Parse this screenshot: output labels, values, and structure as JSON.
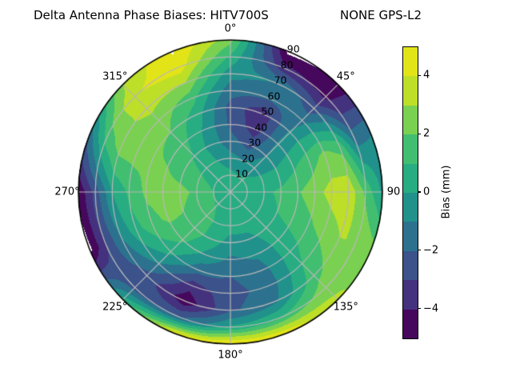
{
  "header": {
    "title_left": "Delta Antenna Phase Biases: HITV700S",
    "title_right": "NONE GPS-L2"
  },
  "chart_data": {
    "type": "polar_contour",
    "title": "Delta Antenna Phase Biases: HITV700S     NONE GPS-L2",
    "units": "mm",
    "azimuth_deg": [
      0,
      22.5,
      45,
      67.5,
      90,
      112.5,
      135,
      157.5,
      180,
      202.5,
      225,
      247.5,
      270,
      292.5,
      315,
      337.5
    ],
    "zenith_deg": [
      0,
      10,
      20,
      30,
      40,
      50,
      60,
      70,
      80,
      90
    ],
    "bias_mm": [
      [
        0.5,
        0.5,
        0.5,
        0.5,
        0.5,
        0.5,
        0.5,
        0.5,
        0.5,
        0.5,
        0.5,
        0.5,
        0.5,
        0.5,
        0.5,
        0.5
      ],
      [
        0.3,
        0.1,
        0.2,
        0.3,
        0.5,
        0.5,
        0.4,
        0.5,
        0.5,
        0.7,
        0.9,
        1.0,
        1.0,
        0.8,
        0.6,
        0.4
      ],
      [
        -0.6,
        -1.0,
        -0.5,
        0.2,
        0.8,
        0.6,
        0.4,
        0.3,
        0.4,
        0.8,
        1.4,
        1.6,
        1.8,
        1.2,
        0.7,
        0.0
      ],
      [
        -1.6,
        -2.4,
        -1.0,
        0.3,
        1.2,
        1.0,
        0.4,
        -0.2,
        -0.4,
        0.6,
        1.6,
        2.0,
        2.3,
        1.6,
        0.9,
        -0.4
      ],
      [
        -2.2,
        -3.6,
        -0.8,
        0.8,
        1.9,
        1.4,
        0.4,
        -0.8,
        -1.2,
        -0.2,
        1.2,
        2.2,
        2.4,
        2.0,
        1.4,
        -0.2
      ],
      [
        -2.4,
        -3.8,
        -0.8,
        1.5,
        2.6,
        1.8,
        0.6,
        -1.4,
        -2.0,
        -1.6,
        0.3,
        1.6,
        2.2,
        2.2,
        2.0,
        0.4
      ],
      [
        -1.6,
        -1.8,
        -1.4,
        2.2,
        3.4,
        2.4,
        1.0,
        -1.6,
        -2.4,
        -3.6,
        -1.0,
        0.6,
        1.2,
        2.4,
        2.6,
        1.4
      ],
      [
        -0.6,
        -1.0,
        -2.6,
        1.6,
        3.8,
        3.0,
        1.6,
        -1.2,
        -2.2,
        -4.7,
        -2.4,
        -1.0,
        0.0,
        2.5,
        3.3,
        3.0
      ],
      [
        0.8,
        -3.6,
        -4.3,
        -1.4,
        1.8,
        3.0,
        2.6,
        1.0,
        0.2,
        -2.0,
        -2.4,
        -3.0,
        -2.6,
        1.2,
        3.9,
        4.6
      ],
      [
        2.4,
        -5.3,
        -4.8,
        -1.0,
        -0.2,
        2.4,
        3.2,
        4.8,
        5.2,
        4.6,
        0.5,
        -5.3,
        -4.9,
        -1.5,
        2.9,
        5.1
      ]
    ],
    "levels": [
      -5,
      -4,
      -3,
      -2,
      -1,
      0,
      1,
      2,
      3,
      4,
      5
    ],
    "band_colors": [
      "#46085c",
      "#45327e",
      "#3b528b",
      "#2c728e",
      "#21918c",
      "#27ad81",
      "#42be71",
      "#7ad151",
      "#bddf27",
      "#e2e418"
    ],
    "angular_tick_deg": [
      0,
      45,
      90,
      135,
      180,
      225,
      270,
      315
    ],
    "angular_tick_labels": [
      "0°",
      "45°",
      "90",
      "135°",
      "180°",
      "225°",
      "270°",
      "315°"
    ],
    "radial_tick_values": [
      10,
      20,
      30,
      40,
      50,
      60,
      70,
      80,
      90
    ],
    "radial_label_angle_deg": 22.5,
    "grid_color": "#b8b8b8",
    "outline_color": "#000000",
    "legend_position": "right"
  },
  "colorbar": {
    "label": "Bias (mm)",
    "min": -5,
    "max": 5,
    "ticks": [
      {
        "value": 4,
        "label": "4"
      },
      {
        "value": 2,
        "label": "2"
      },
      {
        "value": 0,
        "label": "0"
      },
      {
        "value": -2,
        "label": "−2"
      },
      {
        "value": -4,
        "label": "−4"
      }
    ]
  }
}
